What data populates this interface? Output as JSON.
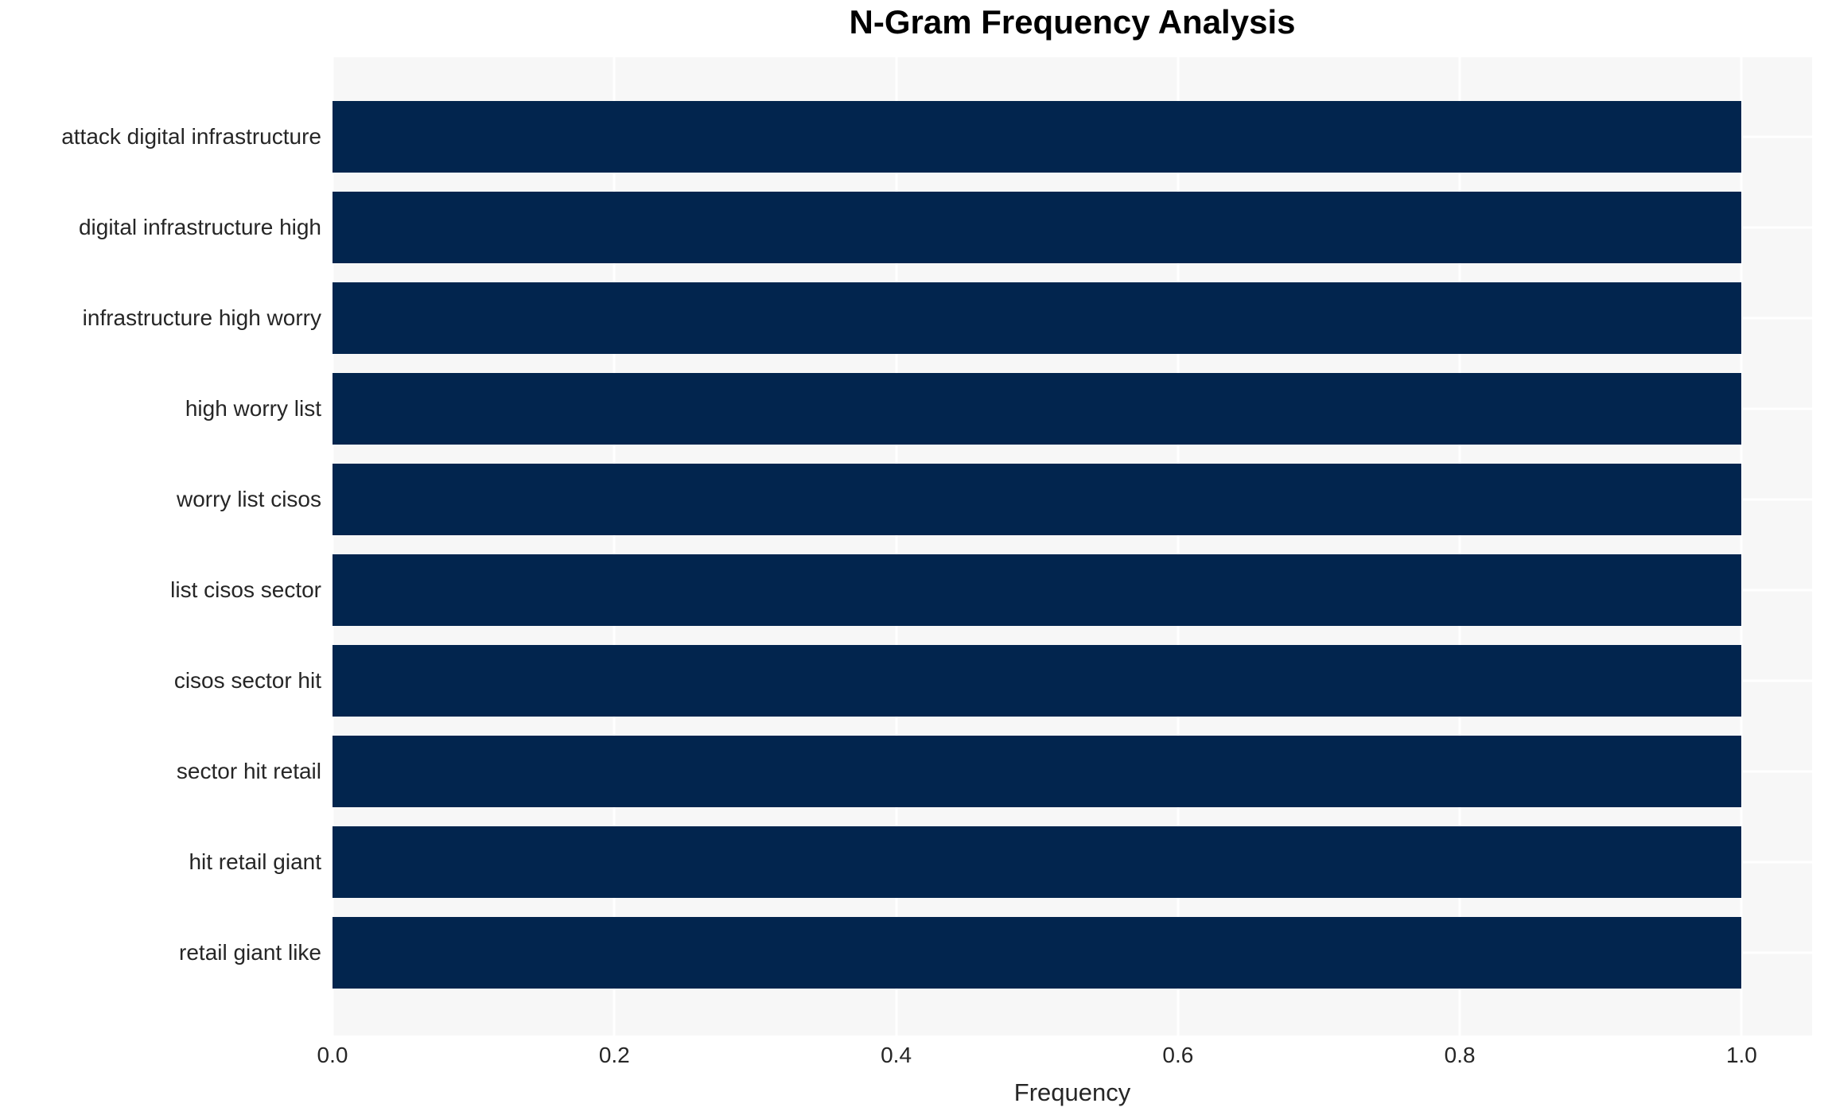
{
  "chart_data": {
    "type": "bar",
    "orientation": "horizontal",
    "title": "N-Gram Frequency Analysis",
    "xlabel": "Frequency",
    "ylabel": "",
    "categories": [
      "attack digital infrastructure",
      "digital infrastructure high",
      "infrastructure high worry",
      "high worry list",
      "worry list cisos",
      "list cisos sector",
      "cisos sector hit",
      "sector hit retail",
      "hit retail giant",
      "retail giant like"
    ],
    "values": [
      1.0,
      1.0,
      1.0,
      1.0,
      1.0,
      1.0,
      1.0,
      1.0,
      1.0,
      1.0
    ],
    "xlim": [
      0,
      1.05
    ],
    "xticks": [
      0.0,
      0.2,
      0.4,
      0.6,
      0.8,
      1.0
    ],
    "xtick_labels": [
      "0.0",
      "0.2",
      "0.4",
      "0.6",
      "0.8",
      "1.0"
    ],
    "grid": true,
    "legend": null,
    "colors": {
      "bar": "#02254e",
      "plot_background": "#f7f7f7",
      "gridline": "#ffffff",
      "figure_background": "#ffffff",
      "tick_text": "#262626",
      "title_text": "#000000"
    }
  }
}
